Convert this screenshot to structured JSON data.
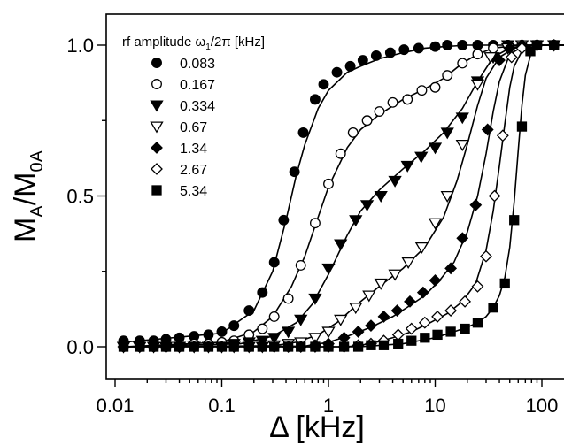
{
  "chart_data": {
    "type": "scatter",
    "x_scale": "log",
    "xlim": [
      0.01,
      200
    ],
    "ylim": [
      -0.05,
      1.05
    ],
    "xticks": [
      {
        "value": 0.01,
        "label": "0.01"
      },
      {
        "value": 0.1,
        "label": "0.1"
      },
      {
        "value": 1,
        "label": "1"
      },
      {
        "value": 10,
        "label": "10"
      },
      {
        "value": 100,
        "label": "100"
      }
    ],
    "yticks": [
      {
        "value": 0.0,
        "label": "0.0"
      },
      {
        "value": 0.5,
        "label": "0.5"
      },
      {
        "value": 1.0,
        "label": "1.0"
      }
    ],
    "xlabel": {
      "prefix": "Δ",
      "rest": " [kHz]"
    },
    "ylabel": {
      "m": "M",
      "sub_a": "A",
      "slash": "/M",
      "sub_0a": "0A"
    },
    "legend": {
      "position": "top-left",
      "title_prefix": "rf amplitude ω",
      "title_sub": "1",
      "title_suffix": "/2π [kHz]"
    },
    "grid": false,
    "series": [
      {
        "name": "0.083",
        "marker": "circle-filled",
        "x": [
          0.012,
          0.017,
          0.023,
          0.03,
          0.04,
          0.055,
          0.075,
          0.1,
          0.13,
          0.18,
          0.24,
          0.31,
          0.38,
          0.48,
          0.58,
          0.75,
          0.9,
          1.2,
          1.6,
          2.1,
          2.8,
          3.8,
          5.1,
          7,
          10,
          13,
          18,
          25,
          35,
          48,
          65,
          90,
          130,
          190
        ],
        "y": [
          0.02,
          0.02,
          0.02,
          0.025,
          0.03,
          0.035,
          0.04,
          0.05,
          0.07,
          0.12,
          0.18,
          0.28,
          0.42,
          0.58,
          0.71,
          0.82,
          0.87,
          0.91,
          0.93,
          0.95,
          0.965,
          0.975,
          0.985,
          0.99,
          0.995,
          1.0,
          1.0,
          1.0,
          1.0,
          1.0,
          1.0,
          1.0,
          1.0,
          1.0
        ],
        "curve_x": [
          0.012,
          0.1,
          0.2,
          0.3,
          0.4,
          0.5,
          0.6,
          0.8,
          1.0,
          1.5,
          2.0,
          3.0,
          5.0,
          8.0,
          12,
          20,
          40,
          100,
          200
        ],
        "curve_y": [
          0.015,
          0.045,
          0.12,
          0.25,
          0.42,
          0.57,
          0.67,
          0.79,
          0.85,
          0.91,
          0.93,
          0.955,
          0.975,
          0.99,
          0.995,
          1.0,
          1.0,
          1.0,
          1.0
        ]
      },
      {
        "name": "0.167",
        "marker": "circle-open",
        "x": [
          0.012,
          0.017,
          0.023,
          0.03,
          0.04,
          0.055,
          0.075,
          0.1,
          0.13,
          0.18,
          0.24,
          0.31,
          0.42,
          0.55,
          0.75,
          1.0,
          1.3,
          1.7,
          2.3,
          3.0,
          4.0,
          5.5,
          7.5,
          10,
          13,
          18,
          25,
          35,
          48,
          65,
          90,
          130,
          190
        ],
        "y": [
          0.0,
          0.0,
          0.0,
          0.0,
          0.0,
          0.01,
          0.01,
          0.015,
          0.02,
          0.04,
          0.06,
          0.1,
          0.16,
          0.27,
          0.41,
          0.54,
          0.64,
          0.71,
          0.75,
          0.78,
          0.81,
          0.82,
          0.85,
          0.86,
          0.9,
          0.94,
          0.97,
          0.99,
          1.0,
          1.0,
          1.0,
          1.0,
          1.0
        ],
        "curve_x": [
          0.012,
          0.1,
          0.2,
          0.3,
          0.45,
          0.6,
          0.8,
          1.0,
          1.5,
          2.0,
          3.0,
          5.0,
          8.0,
          12,
          18,
          25,
          35,
          60,
          100,
          200
        ],
        "curve_y": [
          0.0,
          0.015,
          0.05,
          0.1,
          0.2,
          0.3,
          0.43,
          0.53,
          0.66,
          0.72,
          0.77,
          0.82,
          0.855,
          0.89,
          0.94,
          0.97,
          0.99,
          1.0,
          1.0,
          1.0
        ]
      },
      {
        "name": "0.334",
        "marker": "triangle-down-filled",
        "x": [
          0.012,
          0.017,
          0.023,
          0.03,
          0.04,
          0.055,
          0.075,
          0.1,
          0.13,
          0.18,
          0.24,
          0.31,
          0.42,
          0.55,
          0.75,
          1.0,
          1.3,
          1.8,
          2.3,
          3.1,
          4.2,
          5.5,
          7.4,
          10,
          13,
          18,
          25,
          35,
          48,
          65,
          90,
          130,
          190
        ],
        "y": [
          0.0,
          0.0,
          0.0,
          0.0,
          0.0,
          0.0,
          0.0,
          0.0,
          0.01,
          0.015,
          0.02,
          0.03,
          0.05,
          0.09,
          0.16,
          0.26,
          0.34,
          0.42,
          0.47,
          0.5,
          0.55,
          0.6,
          0.63,
          0.66,
          0.71,
          0.76,
          0.88,
          0.96,
          1.0,
          1.0,
          1.0,
          1.0,
          1.0
        ],
        "curve_x": [
          0.012,
          0.15,
          0.3,
          0.5,
          0.7,
          1.0,
          1.5,
          2.0,
          3.0,
          5.0,
          8.0,
          12,
          18,
          25,
          35,
          50,
          70,
          100,
          200
        ],
        "curve_y": [
          0.0,
          0.01,
          0.035,
          0.08,
          0.14,
          0.24,
          0.37,
          0.45,
          0.52,
          0.59,
          0.65,
          0.71,
          0.79,
          0.88,
          0.96,
          0.99,
          1.0,
          1.0,
          1.0
        ]
      },
      {
        "name": "0.67",
        "marker": "triangle-down-open",
        "x": [
          0.012,
          0.017,
          0.023,
          0.03,
          0.04,
          0.055,
          0.075,
          0.1,
          0.13,
          0.18,
          0.24,
          0.31,
          0.42,
          0.55,
          0.75,
          1.0,
          1.3,
          1.8,
          2.4,
          3.1,
          4.2,
          5.6,
          7.5,
          10,
          13,
          18,
          25,
          33,
          48,
          65,
          90,
          130,
          190
        ],
        "y": [
          0.0,
          0.0,
          0.0,
          0.0,
          0.0,
          0.0,
          0.0,
          0.0,
          0.0,
          0.0,
          0.0,
          0.005,
          0.01,
          0.015,
          0.03,
          0.05,
          0.09,
          0.13,
          0.17,
          0.21,
          0.24,
          0.28,
          0.33,
          0.41,
          0.5,
          0.67,
          0.87,
          0.96,
          0.99,
          1.0,
          1.0,
          1.0,
          1.0
        ],
        "curve_x": [
          0.012,
          0.3,
          0.5,
          0.8,
          1.2,
          2.0,
          3.0,
          5.0,
          8.0,
          12,
          16,
          20,
          25,
          30,
          40,
          55,
          80,
          120,
          200
        ],
        "curve_y": [
          0.0,
          0.003,
          0.015,
          0.04,
          0.08,
          0.15,
          0.2,
          0.26,
          0.33,
          0.43,
          0.55,
          0.67,
          0.8,
          0.89,
          0.96,
          0.99,
          1.0,
          1.0,
          1.0
        ]
      },
      {
        "name": "1.34",
        "marker": "diamond-filled",
        "x": [
          0.012,
          0.017,
          0.023,
          0.03,
          0.04,
          0.055,
          0.075,
          0.1,
          0.13,
          0.18,
          0.24,
          0.31,
          0.42,
          0.55,
          0.75,
          1.0,
          1.4,
          1.9,
          2.5,
          3.3,
          4.4,
          5.8,
          7.7,
          10,
          14,
          18,
          24,
          31,
          40,
          50,
          65,
          90,
          130,
          190
        ],
        "y": [
          0.0,
          0.0,
          0.0,
          0.0,
          0.0,
          0.0,
          0.0,
          0.0,
          0.0,
          0.0,
          0.0,
          0.0,
          0.0,
          0.0,
          0.005,
          0.01,
          0.03,
          0.05,
          0.07,
          0.1,
          0.12,
          0.15,
          0.18,
          0.22,
          0.26,
          0.36,
          0.47,
          0.72,
          0.95,
          0.99,
          1.0,
          1.0,
          1.0,
          1.0
        ],
        "curve_x": [
          0.012,
          0.6,
          1.0,
          1.5,
          2.5,
          4.0,
          6.0,
          8.0,
          11,
          15,
          20,
          25,
          30,
          35,
          40,
          50,
          70,
          100,
          200
        ],
        "curve_y": [
          0.0,
          0.002,
          0.015,
          0.035,
          0.065,
          0.1,
          0.14,
          0.17,
          0.22,
          0.28,
          0.38,
          0.5,
          0.64,
          0.78,
          0.88,
          0.97,
          1.0,
          1.0,
          1.0
        ]
      },
      {
        "name": "2.67",
        "marker": "diamond-open",
        "x": [
          0.012,
          0.017,
          0.023,
          0.03,
          0.04,
          0.055,
          0.075,
          0.1,
          0.13,
          0.18,
          0.24,
          0.31,
          0.42,
          0.55,
          0.75,
          1.0,
          1.4,
          1.9,
          2.5,
          3.3,
          4.5,
          6.0,
          8.0,
          10.5,
          14,
          19,
          25,
          30,
          36,
          43,
          52,
          65,
          90,
          130,
          190
        ],
        "y": [
          0.0,
          0.0,
          0.0,
          0.0,
          0.0,
          0.0,
          0.0,
          0.0,
          0.0,
          0.0,
          0.0,
          0.0,
          0.0,
          0.0,
          0.0,
          0.0,
          0.0,
          0.005,
          0.01,
          0.02,
          0.04,
          0.06,
          0.08,
          0.1,
          0.12,
          0.15,
          0.2,
          0.3,
          0.5,
          0.7,
          0.96,
          0.99,
          1.0,
          1.0,
          1.0
        ],
        "curve_x": [
          0.012,
          1.5,
          2.5,
          4.0,
          6.0,
          9.0,
          13,
          18,
          24,
          30,
          35,
          40,
          45,
          50,
          55,
          65,
          80,
          120,
          200
        ],
        "curve_y": [
          0.0,
          0.0,
          0.01,
          0.03,
          0.05,
          0.08,
          0.11,
          0.15,
          0.21,
          0.32,
          0.45,
          0.6,
          0.74,
          0.86,
          0.93,
          0.98,
          1.0,
          1.0,
          1.0
        ]
      },
      {
        "name": "5.34",
        "marker": "square-filled",
        "x": [
          0.012,
          0.017,
          0.023,
          0.03,
          0.04,
          0.055,
          0.075,
          0.1,
          0.13,
          0.18,
          0.24,
          0.31,
          0.42,
          0.55,
          0.75,
          1.0,
          1.4,
          1.9,
          2.5,
          3.3,
          4.5,
          6.0,
          8.0,
          10.5,
          14,
          19,
          25,
          35,
          45,
          55,
          65,
          78,
          90,
          130,
          190
        ],
        "y": [
          0.0,
          0.0,
          0.0,
          0.0,
          0.0,
          0.0,
          0.0,
          0.0,
          0.0,
          0.0,
          0.0,
          0.0,
          0.0,
          0.0,
          0.0,
          0.0,
          0.0,
          0.0,
          0.005,
          0.005,
          0.01,
          0.02,
          0.03,
          0.04,
          0.05,
          0.06,
          0.08,
          0.13,
          0.21,
          0.42,
          0.73,
          0.98,
          1.0,
          1.0,
          1.0
        ],
        "curve_x": [
          0.012,
          2.0,
          5.0,
          10,
          15,
          20,
          25,
          30,
          35,
          40,
          45,
          50,
          55,
          60,
          65,
          70,
          80,
          90,
          120,
          200
        ],
        "curve_y": [
          0.0,
          0.0,
          0.01,
          0.03,
          0.05,
          0.065,
          0.08,
          0.1,
          0.13,
          0.17,
          0.23,
          0.33,
          0.48,
          0.65,
          0.8,
          0.9,
          0.98,
          1.0,
          1.0,
          1.0
        ]
      }
    ]
  }
}
